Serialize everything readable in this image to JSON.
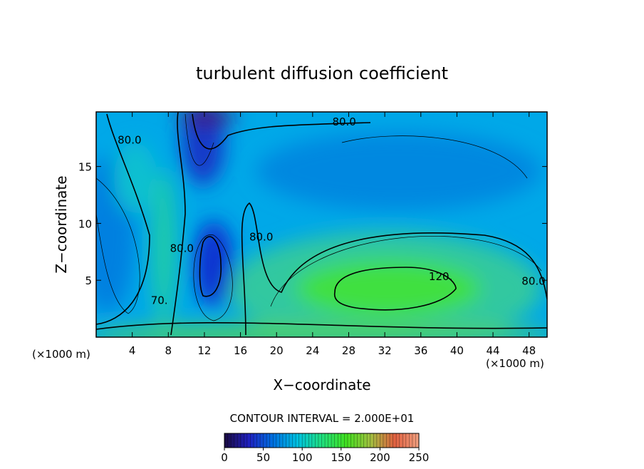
{
  "chart_data": {
    "type": "contour",
    "title": "turbulent diffusion coefficient",
    "xlabel": "X−coordinate",
    "ylabel": "Z−coordinate",
    "x_unit": "(×1000 m)",
    "y_unit": "(×1000 m)",
    "xlim": [
      0,
      50
    ],
    "ylim": [
      0,
      19.8
    ],
    "xticks": [
      4,
      8,
      12,
      16,
      20,
      24,
      28,
      32,
      36,
      40,
      44,
      48
    ],
    "yticks": [
      5,
      10,
      15
    ],
    "contour_interval": "CONTOUR INTERVAL = 2.000E+01",
    "contour_labels": [
      {
        "label": "80.0",
        "x": 27.5,
        "y": 18.6
      },
      {
        "label": "80.0",
        "x": 3.7,
        "y": 17.0
      },
      {
        "label": "80.0",
        "x": 9.5,
        "y": 7.5
      },
      {
        "label": "80.0",
        "x": 18.3,
        "y": 8.5
      },
      {
        "label": "120.",
        "x": 38.2,
        "y": 5.0
      },
      {
        "label": "80.0",
        "x": 48.5,
        "y": 4.6
      },
      {
        "label": "70.",
        "x": 7.0,
        "y": 2.9
      }
    ],
    "clim": [
      0,
      250
    ],
    "cticks": [
      0,
      50,
      100,
      150,
      200,
      250
    ],
    "colormap": [
      "#1a0a40",
      "#2020c0",
      "#0070e0",
      "#00c0e0",
      "#20e080",
      "#40e020",
      "#a0c040",
      "#e06040",
      "#f0a080"
    ]
  }
}
